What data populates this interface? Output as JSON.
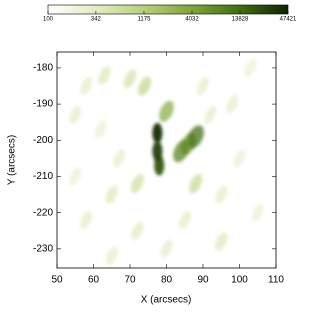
{
  "chart_data": {
    "type": "heatmap",
    "x_label": "X (arcsecs)",
    "y_label": "Y (arcsecs)",
    "xlim": [
      50,
      110
    ],
    "xticks": [
      50,
      60,
      70,
      80,
      90,
      100,
      110
    ],
    "ylim": [
      -235.3,
      -175.6
    ],
    "yticks": [
      -230,
      -220,
      -210,
      -200,
      -190,
      -180
    ],
    "color_scale": {
      "log": true,
      "range": [
        100,
        47421
      ],
      "ticks": [
        100,
        342,
        1175,
        4032,
        13828,
        47421
      ],
      "colors": [
        "#ffffff",
        "#e3ecc4",
        "#b8d07a",
        "#7ea53a",
        "#3f6e12",
        "#0f2203"
      ]
    },
    "points": {
      "x": [
        77.5,
        77.5,
        78,
        84,
        88,
        86,
        80,
        74,
        70,
        63,
        58,
        55,
        62,
        67,
        55,
        65,
        58,
        72,
        85,
        95,
        100,
        98,
        103,
        90,
        95,
        80,
        65,
        105,
        72,
        88,
        92
      ],
      "y": [
        -198,
        -203,
        -207,
        -203,
        -199,
        -201,
        -192,
        -185,
        -183,
        -182,
        -185,
        -193,
        -197,
        -205,
        -210,
        -215,
        -222,
        -225,
        -222,
        -215,
        -205,
        -190,
        -180,
        -185,
        -228,
        -230,
        -232,
        -220,
        -212,
        -212,
        -193
      ],
      "values": [
        40000,
        30000,
        20000,
        8000,
        12000,
        6000,
        3000,
        800,
        500,
        400,
        300,
        300,
        250,
        300,
        250,
        400,
        300,
        350,
        300,
        300,
        250,
        300,
        250,
        300,
        400,
        300,
        300,
        250,
        600,
        700,
        300
      ]
    }
  }
}
